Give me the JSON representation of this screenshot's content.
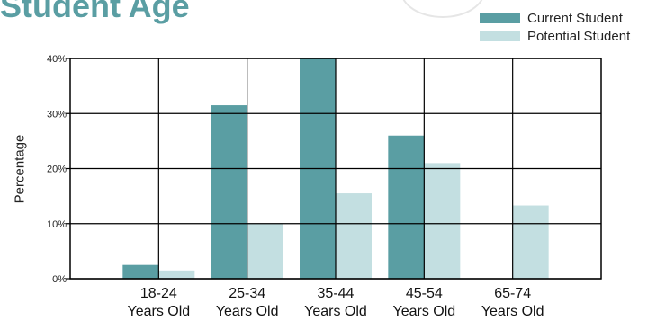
{
  "chart_data": {
    "type": "bar",
    "title": "Student Age",
    "ylabel": "Percentage",
    "xlabel": "",
    "ylim": [
      0,
      40
    ],
    "yticks": [
      "0%",
      "10%",
      "20%",
      "30%",
      "40%"
    ],
    "categories": [
      [
        "18-24",
        "Years Old"
      ],
      [
        "25-34",
        "Years Old"
      ],
      [
        "35-44",
        "Years Old"
      ],
      [
        "45-54",
        "Years Old"
      ],
      [
        "65-74",
        "Years Old"
      ]
    ],
    "series": [
      {
        "name": "Current Student",
        "color": "#5a9ea3",
        "values": [
          2.5,
          31.5,
          40,
          26,
          0
        ]
      },
      {
        "name": "Potential Student",
        "color": "#c3dfe1",
        "values": [
          1.5,
          10,
          15.5,
          21,
          13.3
        ]
      }
    ],
    "legend_position": "top-right",
    "grid": true
  }
}
